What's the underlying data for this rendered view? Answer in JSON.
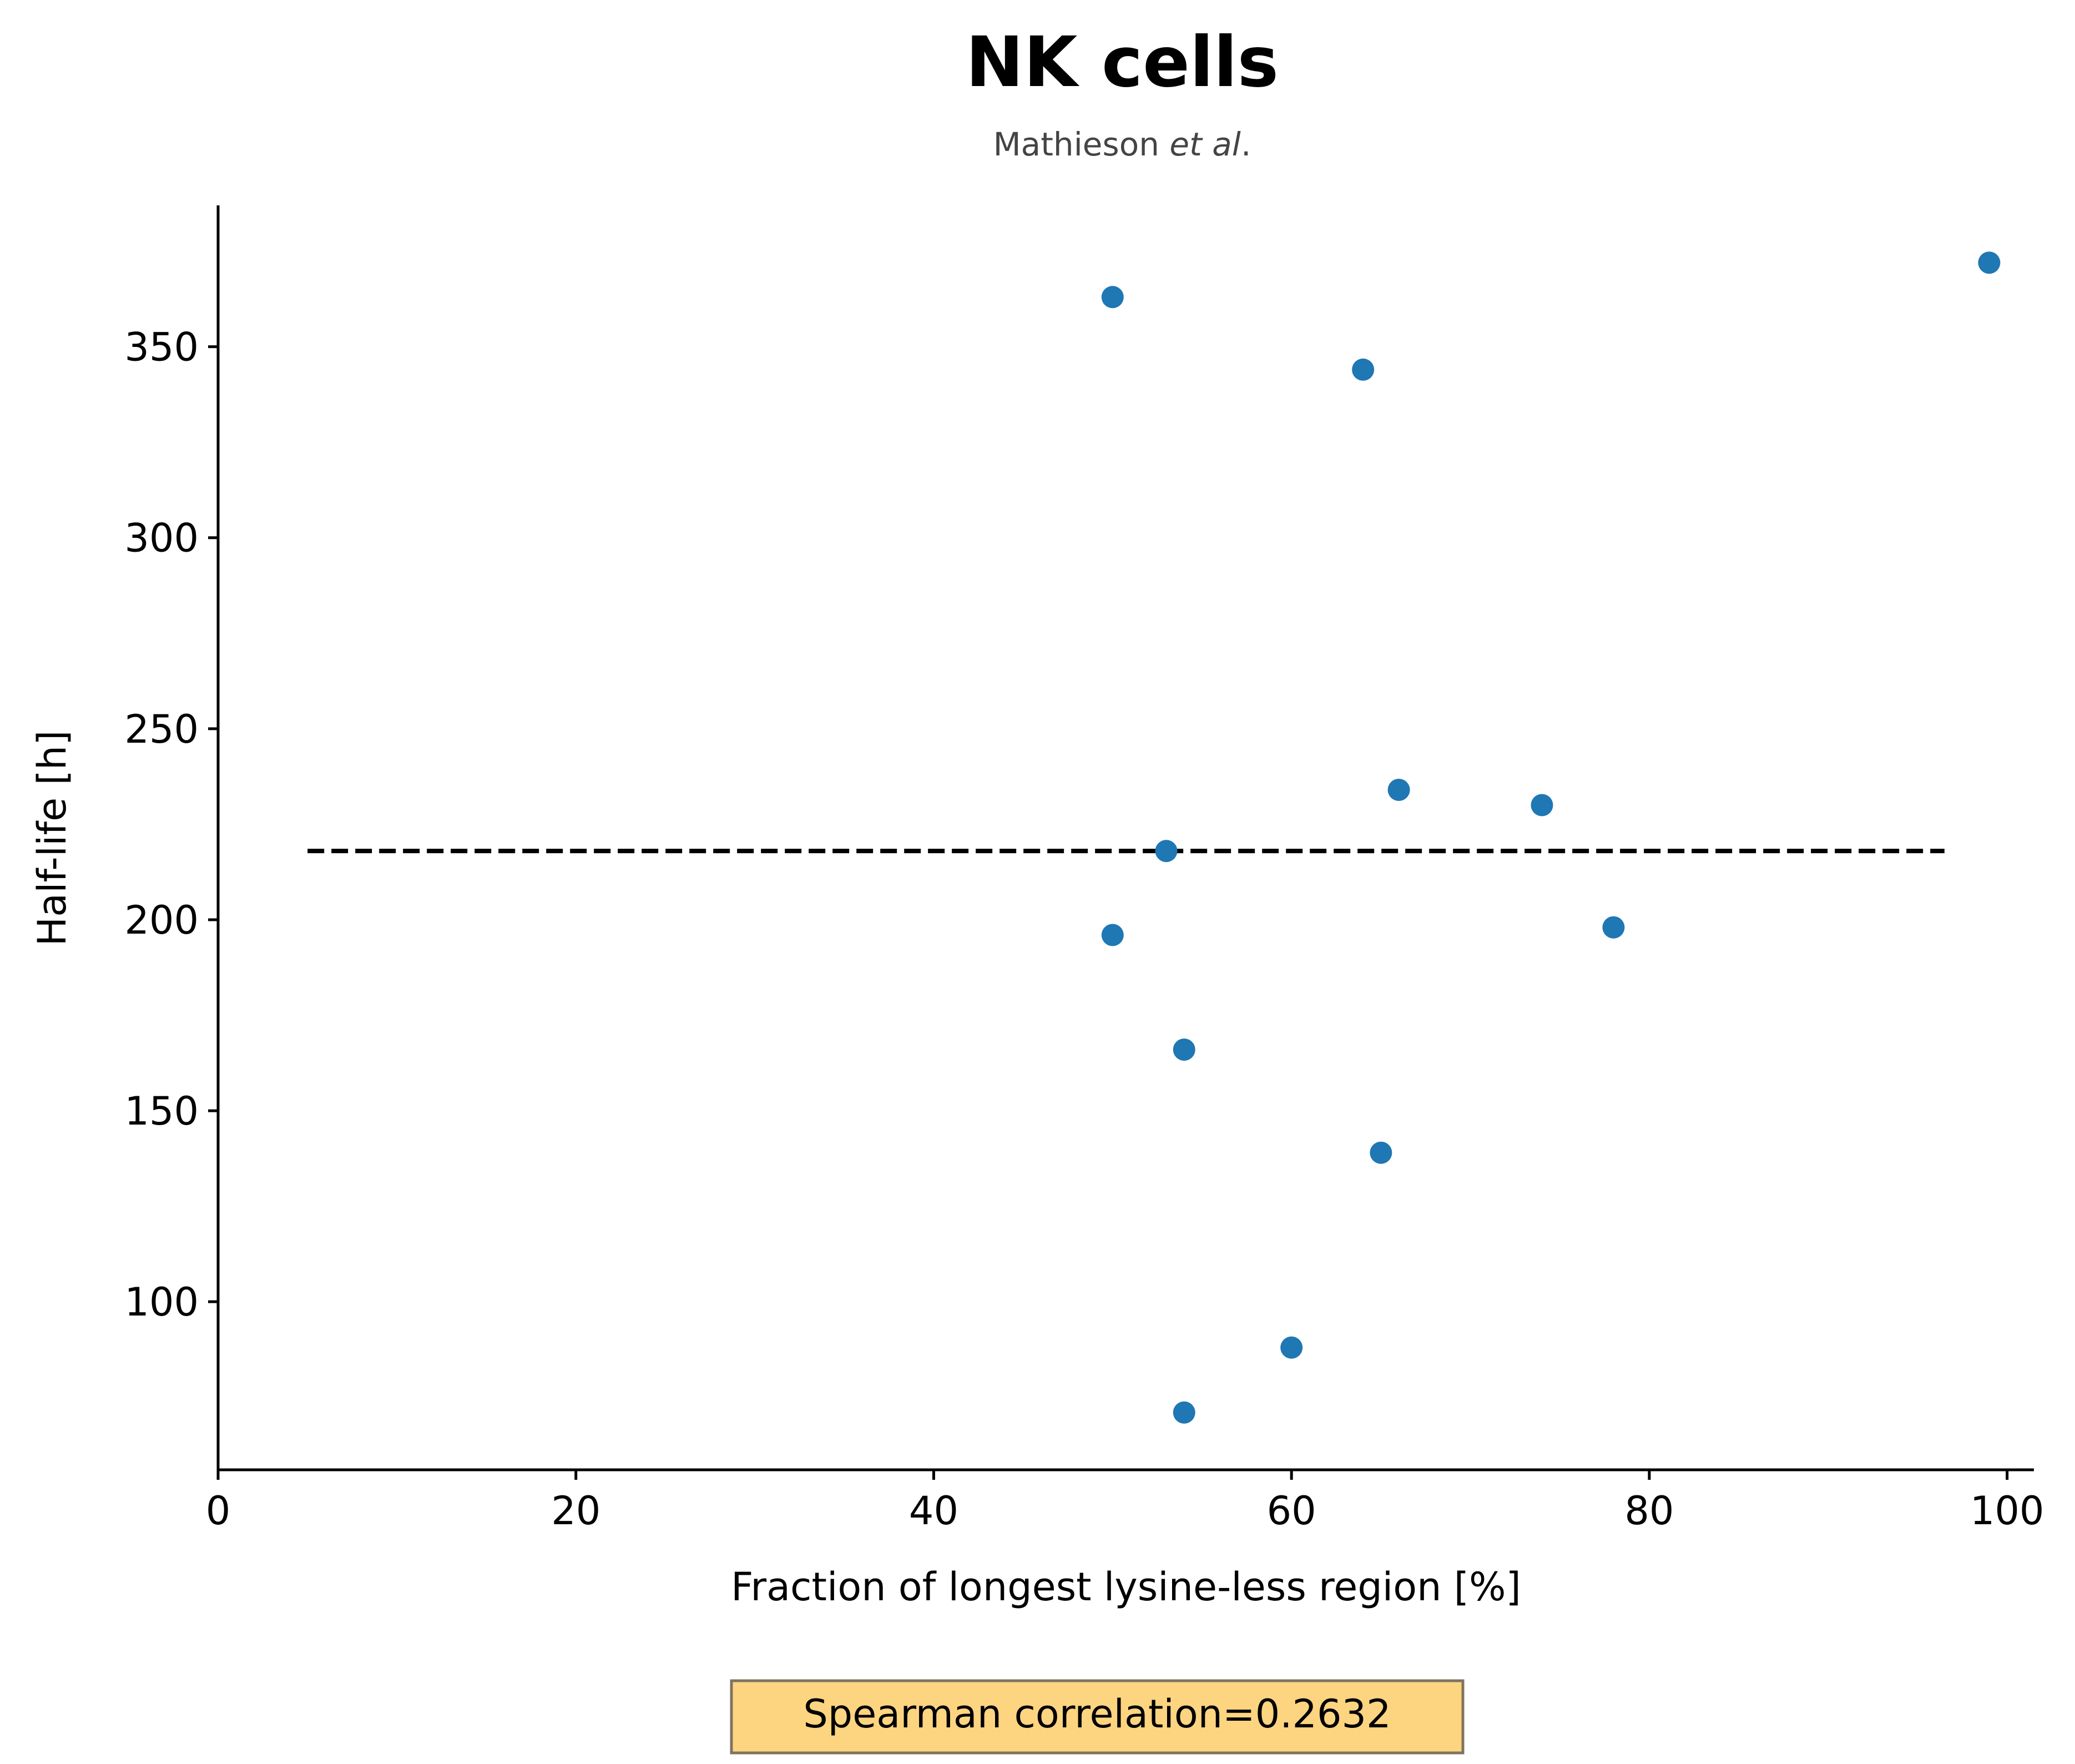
{
  "chart_data": {
    "type": "scatter",
    "title": "NK cells",
    "subtitle_text": "Mathieson ",
    "subtitle_italic": "et al",
    "subtitle_end": ".",
    "xlabel": "Fraction of longest lysine-less region [%]",
    "ylabel": "Half-life [h]",
    "xlim": [
      0,
      101.5
    ],
    "ylim": [
      56,
      387
    ],
    "xticks": [
      0,
      20,
      40,
      60,
      80,
      100
    ],
    "yticks": [
      100,
      150,
      200,
      250,
      300,
      350
    ],
    "xticklabels": [
      "0",
      "20",
      "40",
      "60",
      "80",
      "100"
    ],
    "yticklabels": [
      "100",
      "150",
      "200",
      "250",
      "300",
      "350"
    ],
    "points": [
      {
        "x": 50,
        "y": 363
      },
      {
        "x": 99,
        "y": 372
      },
      {
        "x": 64,
        "y": 344
      },
      {
        "x": 66,
        "y": 234
      },
      {
        "x": 74,
        "y": 230
      },
      {
        "x": 53,
        "y": 218
      },
      {
        "x": 50,
        "y": 196
      },
      {
        "x": 78,
        "y": 198
      },
      {
        "x": 54,
        "y": 166
      },
      {
        "x": 65,
        "y": 139
      },
      {
        "x": 60,
        "y": 88
      },
      {
        "x": 54,
        "y": 71
      }
    ],
    "reference_line": {
      "x": [
        5,
        96.5
      ],
      "y": 218,
      "style": "dashed",
      "color": "#000000"
    },
    "point_color": "#1f77b4",
    "grid": false,
    "annotation": "Spearman correlation=0.2632",
    "annotation_bg": "#fdd480"
  }
}
